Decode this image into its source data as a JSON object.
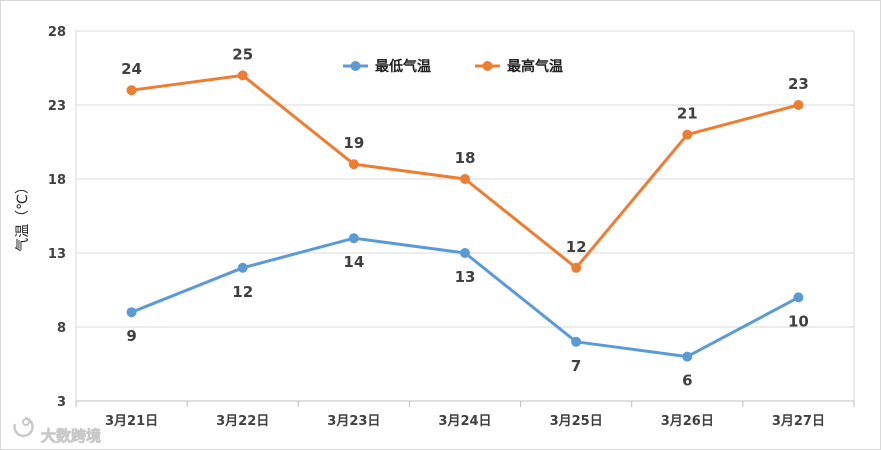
{
  "chart_data": {
    "type": "line",
    "categories": [
      "3月21日",
      "3月22日",
      "3月23日",
      "3月24日",
      "3月25日",
      "3月26日",
      "3月27日"
    ],
    "series": [
      {
        "name": "最低气温",
        "values": [
          9,
          12,
          14,
          13,
          7,
          6,
          10
        ],
        "color": "#5b9bd5"
      },
      {
        "name": "最高气温",
        "values": [
          24,
          25,
          19,
          18,
          12,
          21,
          23
        ],
        "color": "#ed7d31"
      }
    ],
    "title": "",
    "xlabel": "",
    "ylabel": "气温（℃）",
    "ylim": [
      3,
      28
    ],
    "yticks": [
      3,
      8,
      13,
      18,
      23,
      28
    ],
    "grid": true,
    "legend": "top-center"
  },
  "watermark": {
    "text": "大数跨境",
    "icon": "brand-logo-icon"
  }
}
